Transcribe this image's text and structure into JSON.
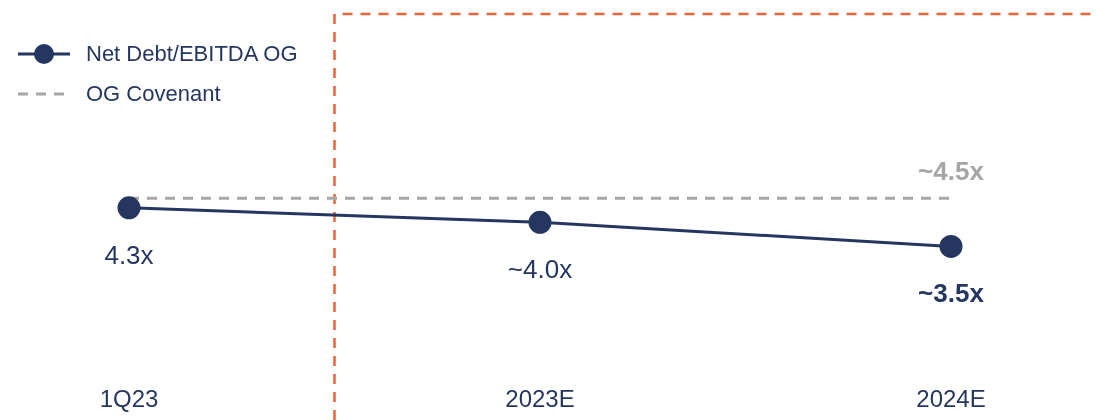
{
  "chart_data": {
    "type": "line",
    "categories": [
      "1Q23",
      "2023E",
      "2024E"
    ],
    "series": [
      {
        "name": "Net Debt/EBITDA OG",
        "color": "#253760",
        "values": [
          4.3,
          4.0,
          3.5
        ],
        "value_labels": [
          "4.3x",
          "~4.0x",
          "~3.5x"
        ],
        "marker": "circle",
        "line_style": "solid"
      },
      {
        "name": "OG Covenant",
        "color": "#a6a6a6",
        "values": [
          4.5,
          4.5,
          4.5
        ],
        "value_labels": [
          null,
          null,
          "~4.5x"
        ],
        "marker": "none",
        "line_style": "dashed"
      }
    ],
    "ref_lines": [
      {
        "axis": "x",
        "value": "2023E",
        "color": "#e8663a",
        "line_style": "dashed"
      }
    ],
    "legend": "top left",
    "grid": false
  }
}
